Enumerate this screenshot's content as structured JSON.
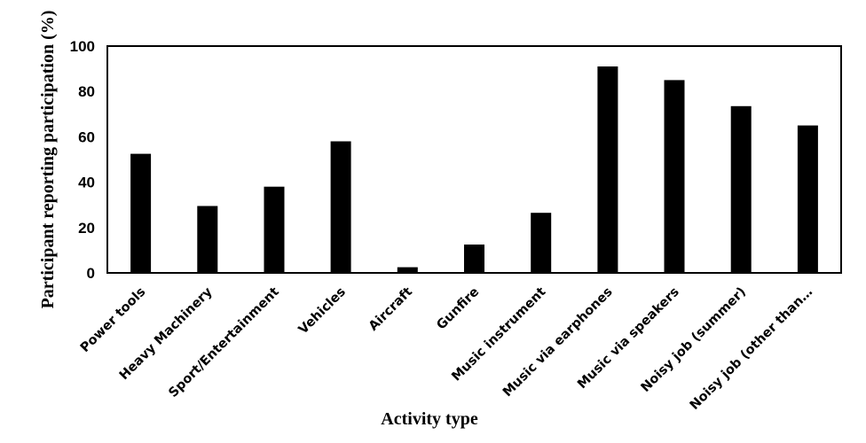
{
  "chart_data": {
    "type": "bar",
    "title": "",
    "xlabel": "Activity type",
    "ylabel": "Participant reporting participation (%)",
    "ylim": [
      0,
      100
    ],
    "yticks": [
      0,
      20,
      40,
      60,
      80,
      100
    ],
    "grid": false,
    "legend": "none",
    "bar_color": "#000000",
    "categories": [
      "Power tools",
      "Heavy Machinery",
      "Sport/Entertainment",
      "Vehicles",
      "Aircraft",
      "Gunfire",
      "Music instrument",
      "Music via earphones",
      "Music via speakers",
      "Noisy job (summer)",
      "Noisy job (other than…"
    ],
    "values": [
      52.5,
      29.5,
      38,
      58,
      2.5,
      12.5,
      26.5,
      91,
      85,
      73.5,
      65
    ]
  }
}
